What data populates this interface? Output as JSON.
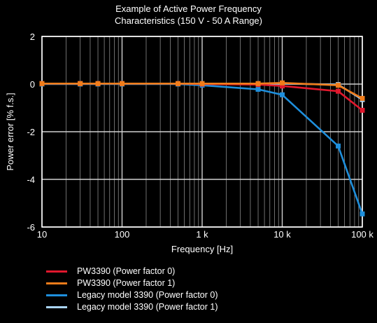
{
  "chart_data": {
    "type": "line",
    "title_lines": [
      "Example of Active Power Frequency",
      "Characteristics (150 V - 50 A Range)"
    ],
    "xlabel": "Frequency [Hz]",
    "ylabel": "Power error [% f.s.]",
    "x_scale": "log",
    "xlim": [
      10,
      100000
    ],
    "ylim": [
      -6,
      2
    ],
    "x_ticks": [
      10,
      100,
      1000,
      10000,
      100000
    ],
    "x_tick_labels": [
      "10",
      "100",
      "1 k",
      "10 k",
      "100 k"
    ],
    "y_ticks": [
      2,
      0,
      -2,
      -4,
      -6
    ],
    "y_tick_labels": [
      "2",
      "0",
      "-2",
      "-4",
      "-6"
    ],
    "grid": true,
    "legend_position": "bottom",
    "series": [
      {
        "name": "PW3390 (Power factor 0)",
        "color": "#e0182d",
        "x": [
          10,
          30,
          50,
          100,
          500,
          1000,
          5000,
          10000,
          50000,
          100000
        ],
        "y": [
          0.02,
          0.02,
          0.02,
          0.02,
          0.02,
          0.0,
          -0.02,
          -0.08,
          -0.3,
          -1.1
        ]
      },
      {
        "name": "PW3390 (Power factor 1)",
        "color": "#f07c1a",
        "x": [
          10,
          30,
          50,
          100,
          500,
          1000,
          5000,
          10000,
          50000,
          100000
        ],
        "y": [
          0.02,
          0.02,
          0.02,
          0.02,
          0.02,
          0.02,
          0.02,
          0.05,
          -0.05,
          -0.6
        ]
      },
      {
        "name": "Legacy model 3390 (Power factor 0)",
        "color": "#1e8fdc",
        "x": [
          10,
          30,
          50,
          100,
          500,
          1000,
          5000,
          10000,
          50000,
          100000
        ],
        "y": [
          0.0,
          0.0,
          0.0,
          0.0,
          0.0,
          -0.05,
          -0.22,
          -0.45,
          -2.6,
          -5.45
        ]
      },
      {
        "name": "Legacy model 3390 (Power factor 1)",
        "color": "#aad4f5",
        "x": [
          10,
          30,
          50,
          100,
          500,
          1000,
          5000,
          10000,
          50000,
          100000
        ],
        "y": [
          0.02,
          0.02,
          0.02,
          0.02,
          0.02,
          0.02,
          0.02,
          0.02,
          -0.02,
          -0.65
        ]
      }
    ]
  }
}
